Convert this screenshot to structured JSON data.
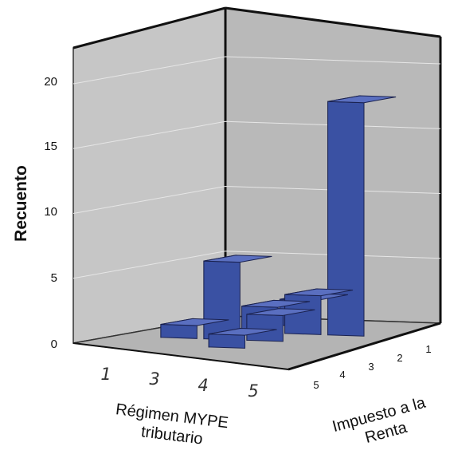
{
  "chart_data": {
    "type": "bar3d",
    "ylabel": "Recuento",
    "xlabel": "Régimen MYPE tributario",
    "zlabel": "Impuesto a la Renta",
    "x_categories": [
      "1",
      "3",
      "4",
      "5"
    ],
    "z_categories": [
      "5",
      "4",
      "3",
      "2",
      "1"
    ],
    "y_ticks": [
      "0",
      "5",
      "10",
      "15",
      "20"
    ],
    "ylim": [
      0,
      22
    ],
    "bars": [
      {
        "x": "1",
        "z": "3",
        "value": 2
      },
      {
        "x": "3",
        "z": "3",
        "value": 2
      },
      {
        "x": "3",
        "z": "2",
        "value": 3
      },
      {
        "x": "3",
        "z": "1",
        "value": 18
      },
      {
        "x": "4",
        "z": "4",
        "value": 1
      },
      {
        "x": "4",
        "z": "3",
        "value": 6
      },
      {
        "x": "4",
        "z": "2",
        "value": 2
      },
      {
        "x": "5",
        "z": "2",
        "value": 1
      }
    ],
    "bar_color": "#3a4f9c",
    "wall_color": "#c4c4c4",
    "floor_color": "#b0b0b0",
    "grid": true
  }
}
